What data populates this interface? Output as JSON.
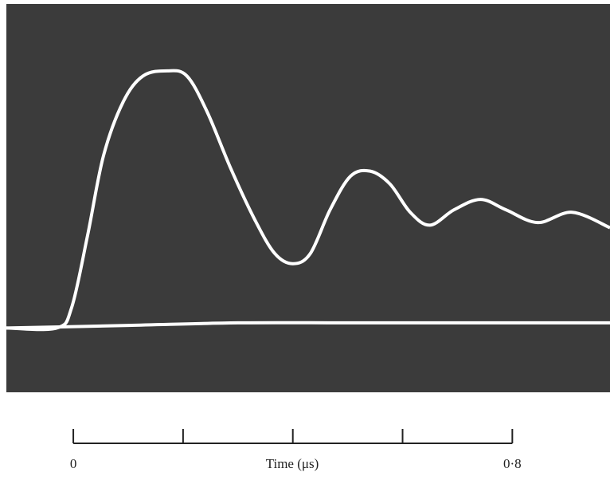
{
  "chart_data": {
    "type": "line",
    "xlabel": "Time (μs)",
    "xlim": [
      -0.122,
      0.978
    ],
    "ylim": [
      -0.25,
      1.26
    ],
    "xticks": [
      0,
      {
        "value": 0.8,
        "label": "0·8"
      }
    ],
    "xminor_ticks": [
      0.2,
      0.4,
      0.6
    ],
    "background": "#3b3b3b",
    "series": [
      {
        "color": "#ffffff",
        "x": [
          -0.122,
          -0.03,
          -0.003,
          0.026,
          0.055,
          0.091,
          0.127,
          0.171,
          0.207,
          0.244,
          0.287,
          0.331,
          0.367,
          0.4,
          0.432,
          0.468,
          0.505,
          0.541,
          0.577,
          0.614,
          0.65,
          0.694,
          0.742,
          0.788,
          0.846,
          0.909,
          0.978
        ],
        "values": [
          0,
          0,
          0.08,
          0.36,
          0.67,
          0.88,
          0.98,
          1.0,
          0.98,
          0.84,
          0.62,
          0.42,
          0.29,
          0.25,
          0.29,
          0.46,
          0.59,
          0.61,
          0.56,
          0.45,
          0.4,
          0.46,
          0.5,
          0.46,
          0.41,
          0.45,
          0.39
        ]
      },
      {
        "color": "#ffffff",
        "x": [
          -0.122,
          0.1,
          0.3,
          0.5,
          0.7,
          0.978
        ],
        "values": [
          0.0,
          0.01,
          0.02,
          0.02,
          0.02,
          0.02
        ]
      }
    ]
  }
}
